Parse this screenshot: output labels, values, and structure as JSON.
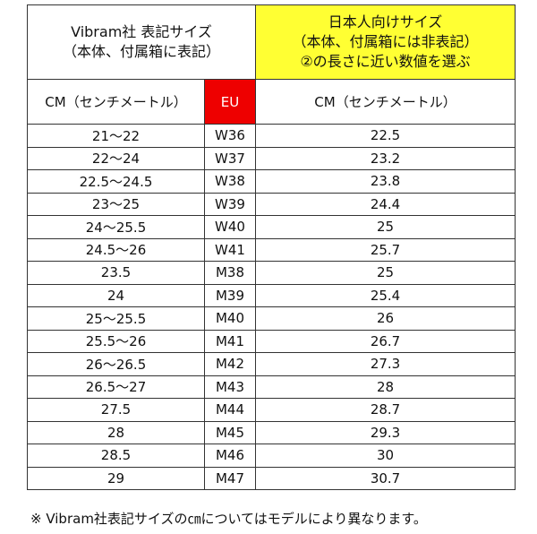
{
  "header": {
    "left": [
      "Vibram社 表記サイズ",
      "（本体、付属箱に表記）"
    ],
    "right": [
      "日本人向けサイズ",
      "（本体、付属箱には非表記）",
      "②の長さに近い数値を選ぶ"
    ]
  },
  "columns": [
    "CM（センチメートル）",
    "EU",
    "CM（センチメートル）"
  ],
  "rows": [
    [
      "21～22",
      "W36",
      "22.5"
    ],
    [
      "22～24",
      "W37",
      "23.2"
    ],
    [
      "22.5～24.5",
      "W38",
      "23.8"
    ],
    [
      "23～25",
      "W39",
      "24.4"
    ],
    [
      "24～25.5",
      "W40",
      "25"
    ],
    [
      "24.5～26",
      "W41",
      "25.7"
    ],
    [
      "23.5",
      "M38",
      "25"
    ],
    [
      "24",
      "M39",
      "25.4"
    ],
    [
      "25～25.5",
      "M40",
      "26"
    ],
    [
      "25.5～26",
      "M41",
      "26.7"
    ],
    [
      "26～26.5",
      "M42",
      "27.3"
    ],
    [
      "26.5～27",
      "M43",
      "28"
    ],
    [
      "27.5",
      "M44",
      "28.7"
    ],
    [
      "28",
      "M45",
      "29.3"
    ],
    [
      "28.5",
      "M46",
      "30"
    ],
    [
      "29",
      "M47",
      "30.7"
    ]
  ],
  "footnote": "※ Vibram社表記サイズの㎝についてはモデルにより異なります。"
}
